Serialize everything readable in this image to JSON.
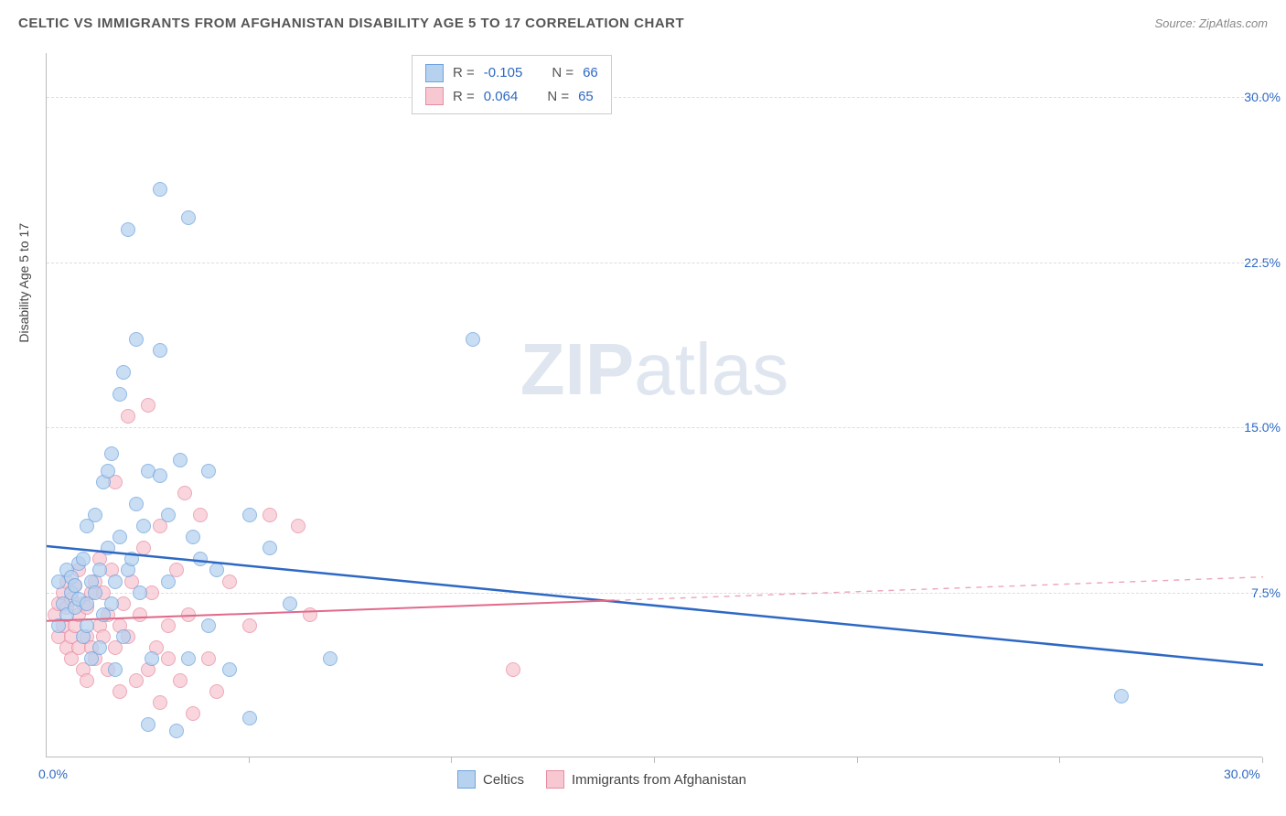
{
  "title": "CELTIC VS IMMIGRANTS FROM AFGHANISTAN DISABILITY AGE 5 TO 17 CORRELATION CHART",
  "source": "Source: ZipAtlas.com",
  "watermark_bold": "ZIP",
  "watermark_light": "atlas",
  "chart": {
    "type": "scatter",
    "y_axis_title": "Disability Age 5 to 17",
    "x_min": 0.0,
    "x_max": 30.0,
    "y_min": 0.0,
    "y_max": 32.0,
    "x_ticks": [
      0,
      5,
      10,
      15,
      20,
      25,
      30
    ],
    "x_tick_labels_shown": {
      "0": "0.0%",
      "30": "30.0%"
    },
    "y_ticks": [
      7.5,
      15.0,
      22.5,
      30.0
    ],
    "y_tick_labels": [
      "7.5%",
      "15.0%",
      "22.5%",
      "30.0%"
    ],
    "background_color": "#ffffff",
    "grid_color": "#dddddd",
    "axis_color": "#bbbbbb",
    "label_color": "#2d68c4",
    "point_radius": 8,
    "series": [
      {
        "name": "Celtics",
        "color_fill": "#b7d2ef",
        "color_stroke": "#6da3de",
        "R": "-0.105",
        "N": "66",
        "line": {
          "x1": 0,
          "y1": 9.6,
          "x2": 30,
          "y2": 4.2,
          "solid_until_x": 30,
          "stroke": "#2d68c4",
          "width": 2.5
        },
        "points": [
          [
            0.3,
            6.0
          ],
          [
            0.3,
            8.0
          ],
          [
            0.4,
            7.0
          ],
          [
            0.5,
            8.5
          ],
          [
            0.5,
            6.5
          ],
          [
            0.6,
            7.5
          ],
          [
            0.6,
            8.2
          ],
          [
            0.7,
            6.8
          ],
          [
            0.7,
            7.8
          ],
          [
            0.8,
            7.2
          ],
          [
            0.8,
            8.8
          ],
          [
            0.9,
            5.5
          ],
          [
            0.9,
            9.0
          ],
          [
            1.0,
            6.0
          ],
          [
            1.0,
            7.0
          ],
          [
            1.0,
            10.5
          ],
          [
            1.1,
            8.0
          ],
          [
            1.1,
            4.5
          ],
          [
            1.2,
            11.0
          ],
          [
            1.2,
            7.5
          ],
          [
            1.3,
            8.5
          ],
          [
            1.3,
            5.0
          ],
          [
            1.4,
            12.5
          ],
          [
            1.4,
            6.5
          ],
          [
            1.5,
            13.0
          ],
          [
            1.5,
            9.5
          ],
          [
            1.6,
            13.8
          ],
          [
            1.6,
            7.0
          ],
          [
            1.7,
            8.0
          ],
          [
            1.7,
            4.0
          ],
          [
            1.8,
            16.5
          ],
          [
            1.8,
            10.0
          ],
          [
            1.9,
            17.5
          ],
          [
            1.9,
            5.5
          ],
          [
            2.0,
            24.0
          ],
          [
            2.0,
            8.5
          ],
          [
            2.1,
            9.0
          ],
          [
            2.2,
            19.0
          ],
          [
            2.2,
            11.5
          ],
          [
            2.3,
            7.5
          ],
          [
            2.4,
            10.5
          ],
          [
            2.5,
            13.0
          ],
          [
            2.5,
            1.5
          ],
          [
            2.6,
            4.5
          ],
          [
            2.8,
            25.8
          ],
          [
            2.8,
            18.5
          ],
          [
            2.8,
            12.8
          ],
          [
            3.0,
            11.0
          ],
          [
            3.0,
            8.0
          ],
          [
            3.2,
            1.2
          ],
          [
            3.3,
            13.5
          ],
          [
            3.5,
            24.5
          ],
          [
            3.5,
            4.5
          ],
          [
            3.6,
            10.0
          ],
          [
            3.8,
            9.0
          ],
          [
            4.0,
            13.0
          ],
          [
            4.0,
            6.0
          ],
          [
            4.2,
            8.5
          ],
          [
            4.5,
            4.0
          ],
          [
            5.0,
            11.0
          ],
          [
            5.0,
            1.8
          ],
          [
            5.5,
            9.5
          ],
          [
            6.0,
            7.0
          ],
          [
            7.0,
            4.5
          ],
          [
            10.5,
            19.0
          ],
          [
            26.5,
            2.8
          ]
        ]
      },
      {
        "name": "Immigrants from Afghanistan",
        "color_fill": "#f7c8d2",
        "color_stroke": "#e88ba1",
        "R": "0.064",
        "N": "65",
        "line": {
          "x1": 0,
          "y1": 6.2,
          "x2": 30,
          "y2": 8.2,
          "solid_until_x": 14,
          "stroke": "#e06a8a",
          "width": 2
        },
        "points": [
          [
            0.2,
            6.5
          ],
          [
            0.3,
            7.0
          ],
          [
            0.3,
            5.5
          ],
          [
            0.4,
            6.0
          ],
          [
            0.4,
            7.5
          ],
          [
            0.5,
            5.0
          ],
          [
            0.5,
            6.8
          ],
          [
            0.5,
            8.0
          ],
          [
            0.6,
            5.5
          ],
          [
            0.6,
            7.2
          ],
          [
            0.6,
            4.5
          ],
          [
            0.7,
            6.0
          ],
          [
            0.7,
            7.8
          ],
          [
            0.8,
            5.0
          ],
          [
            0.8,
            6.5
          ],
          [
            0.8,
            8.5
          ],
          [
            0.9,
            4.0
          ],
          [
            0.9,
            7.0
          ],
          [
            1.0,
            5.5
          ],
          [
            1.0,
            6.8
          ],
          [
            1.0,
            3.5
          ],
          [
            1.1,
            7.5
          ],
          [
            1.1,
            5.0
          ],
          [
            1.2,
            8.0
          ],
          [
            1.2,
            4.5
          ],
          [
            1.3,
            6.0
          ],
          [
            1.3,
            9.0
          ],
          [
            1.4,
            5.5
          ],
          [
            1.4,
            7.5
          ],
          [
            1.5,
            4.0
          ],
          [
            1.5,
            6.5
          ],
          [
            1.6,
            8.5
          ],
          [
            1.7,
            5.0
          ],
          [
            1.7,
            12.5
          ],
          [
            1.8,
            6.0
          ],
          [
            1.8,
            3.0
          ],
          [
            1.9,
            7.0
          ],
          [
            2.0,
            15.5
          ],
          [
            2.0,
            5.5
          ],
          [
            2.1,
            8.0
          ],
          [
            2.2,
            3.5
          ],
          [
            2.3,
            6.5
          ],
          [
            2.4,
            9.5
          ],
          [
            2.5,
            4.0
          ],
          [
            2.5,
            16.0
          ],
          [
            2.6,
            7.5
          ],
          [
            2.7,
            5.0
          ],
          [
            2.8,
            10.5
          ],
          [
            2.8,
            2.5
          ],
          [
            3.0,
            6.0
          ],
          [
            3.0,
            4.5
          ],
          [
            3.2,
            8.5
          ],
          [
            3.3,
            3.5
          ],
          [
            3.4,
            12.0
          ],
          [
            3.5,
            6.5
          ],
          [
            3.6,
            2.0
          ],
          [
            3.8,
            11.0
          ],
          [
            4.0,
            4.5
          ],
          [
            4.2,
            3.0
          ],
          [
            4.5,
            8.0
          ],
          [
            5.0,
            6.0
          ],
          [
            5.5,
            11.0
          ],
          [
            6.2,
            10.5
          ],
          [
            6.5,
            6.5
          ],
          [
            11.5,
            4.0
          ]
        ]
      }
    ]
  },
  "legend_top_rows": [
    {
      "r_label": "R =",
      "n_label": "N ="
    },
    {
      "r_label": "R =",
      "n_label": "N ="
    }
  ],
  "legend_bottom": [
    "Celtics",
    "Immigrants from Afghanistan"
  ]
}
